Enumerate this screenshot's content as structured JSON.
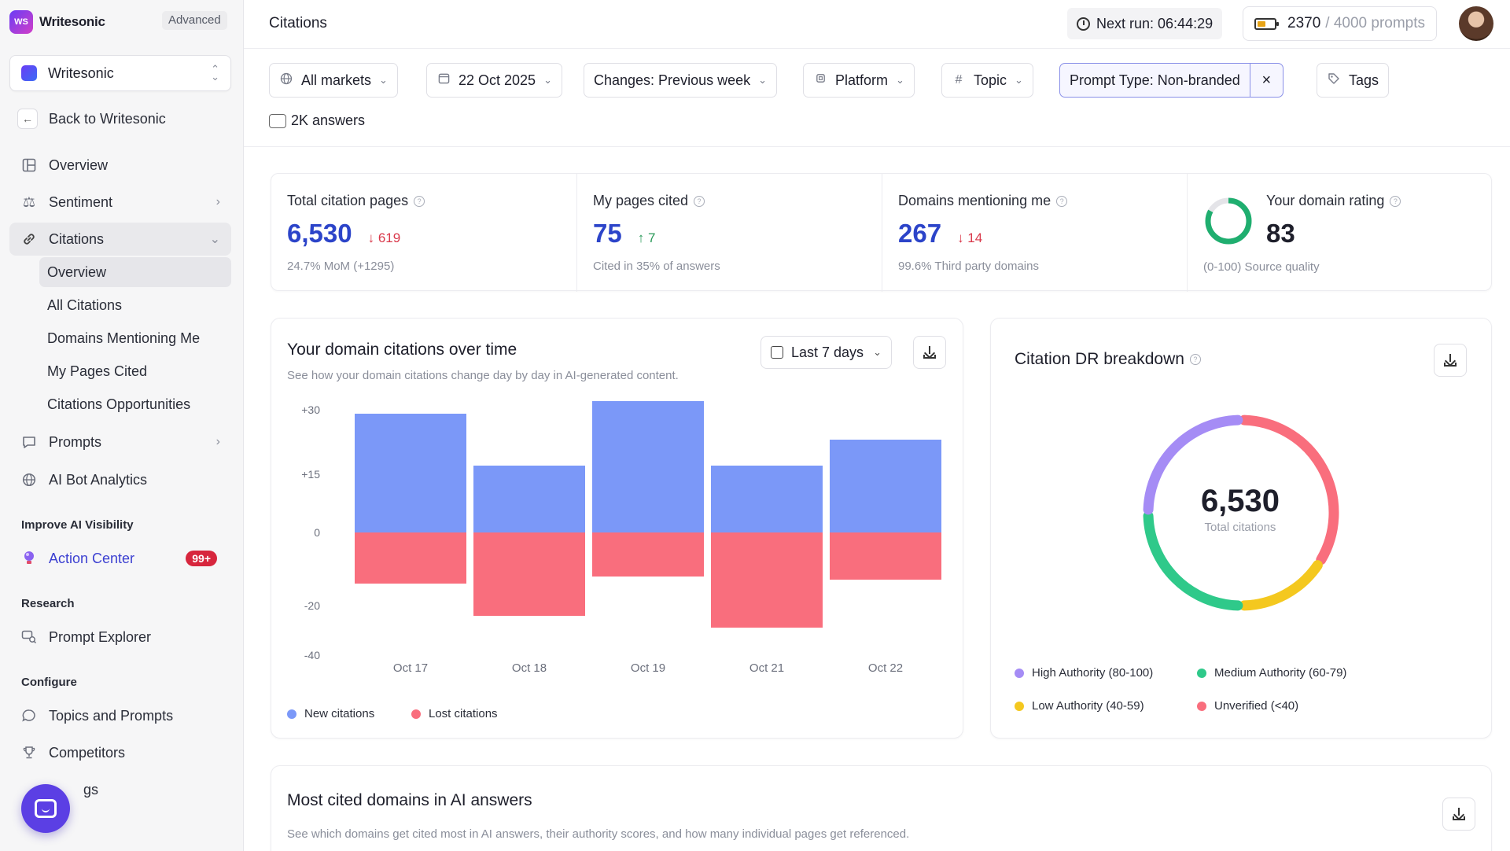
{
  "brand": {
    "name": "Writesonic",
    "logo_text": "WS",
    "plan": "Advanced"
  },
  "workspace": {
    "name": "Writesonic"
  },
  "sidebar": {
    "back": "Back to Writesonic",
    "overview": "Overview",
    "sentiment": "Sentiment",
    "citations": "Citations",
    "citations_sub": [
      "Overview",
      "All Citations",
      "Domains Mentioning Me",
      "My Pages Cited",
      "Citations Opportunities"
    ],
    "prompts": "Prompts",
    "ai_bot": "AI Bot Analytics",
    "section_improve": "Improve AI Visibility",
    "action_center": "Action Center",
    "action_badge": "99+",
    "section_research": "Research",
    "prompt_explorer": "Prompt Explorer",
    "section_configure": "Configure",
    "topics": "Topics and Prompts",
    "competitors": "Competitors",
    "last_partial": "gs"
  },
  "header": {
    "title": "Citations",
    "next_run": "Next run: 06:44:29",
    "prompts_used": "2370",
    "prompts_total": "/ 4000 prompts"
  },
  "filters": {
    "markets": "All markets",
    "date": "22 Oct 2025",
    "changes": "Changes: Previous week",
    "platform": "Platform",
    "topic": "Topic",
    "prompt_type": "Prompt Type: Non-branded",
    "tags": "Tags",
    "answers": "2K answers"
  },
  "kpis": {
    "total": {
      "label": "Total citation pages",
      "value": "6,530",
      "delta": "↓ 619",
      "sub": "24.7% MoM (+1295)"
    },
    "mine": {
      "label": "My pages cited",
      "value": "75",
      "delta": "↑ 7",
      "sub": "Cited in 35% of answers"
    },
    "domains": {
      "label": "Domains mentioning me",
      "value": "267",
      "delta": "↓ 14",
      "sub": "99.6% Third party domains"
    },
    "rating": {
      "label": "Your domain rating",
      "value": "83",
      "sub": "(0-100) Source quality",
      "level": 83
    }
  },
  "over_time": {
    "title": "Your domain citations over time",
    "subtitle": "See how your domain citations change day by day in AI-generated content.",
    "range": "Last 7 days",
    "legend_new": "New citations",
    "legend_lost": "Lost citations"
  },
  "chart_data": [
    {
      "type": "bar",
      "categories": [
        "Oct 17",
        "Oct 18",
        "Oct 19",
        "Oct 21",
        "Oct 22"
      ],
      "series": [
        {
          "name": "New citations",
          "values": [
            29,
            17,
            32,
            17,
            23
          ],
          "color": "#7b98f8"
        },
        {
          "name": "Lost citations",
          "values": [
            -14,
            -24,
            -12,
            -29,
            -13
          ],
          "color": "#f96e7d"
        }
      ],
      "yticks": [
        "+30",
        "+15",
        "0",
        "-20",
        "-40"
      ],
      "grid": false,
      "legend": "bottom-left"
    },
    {
      "type": "pie",
      "title": "Citation DR breakdown",
      "center_value": "6,530",
      "center_label": "Total citations",
      "slices": [
        {
          "name": "Unverified (<40)",
          "value": 34,
          "color": "#f96e7d"
        },
        {
          "name": "Low Authority (40-59)",
          "value": 16,
          "color": "#f4c81f"
        },
        {
          "name": "Medium Authority (60-79)",
          "value": 25,
          "color": "#2fc98a"
        },
        {
          "name": "High Authority (80-100)",
          "value": 25,
          "color": "#a58cf5"
        }
      ],
      "legend_order": [
        "High Authority (80-100)",
        "Medium Authority (60-79)",
        "Low Authority (40-59)",
        "Unverified (<40)"
      ],
      "legend": "bottom"
    }
  ],
  "most_cited": {
    "title": "Most cited domains in AI answers",
    "subtitle": "See which domains get cited most in AI answers, their authority scores, and how many individual pages get referenced."
  }
}
